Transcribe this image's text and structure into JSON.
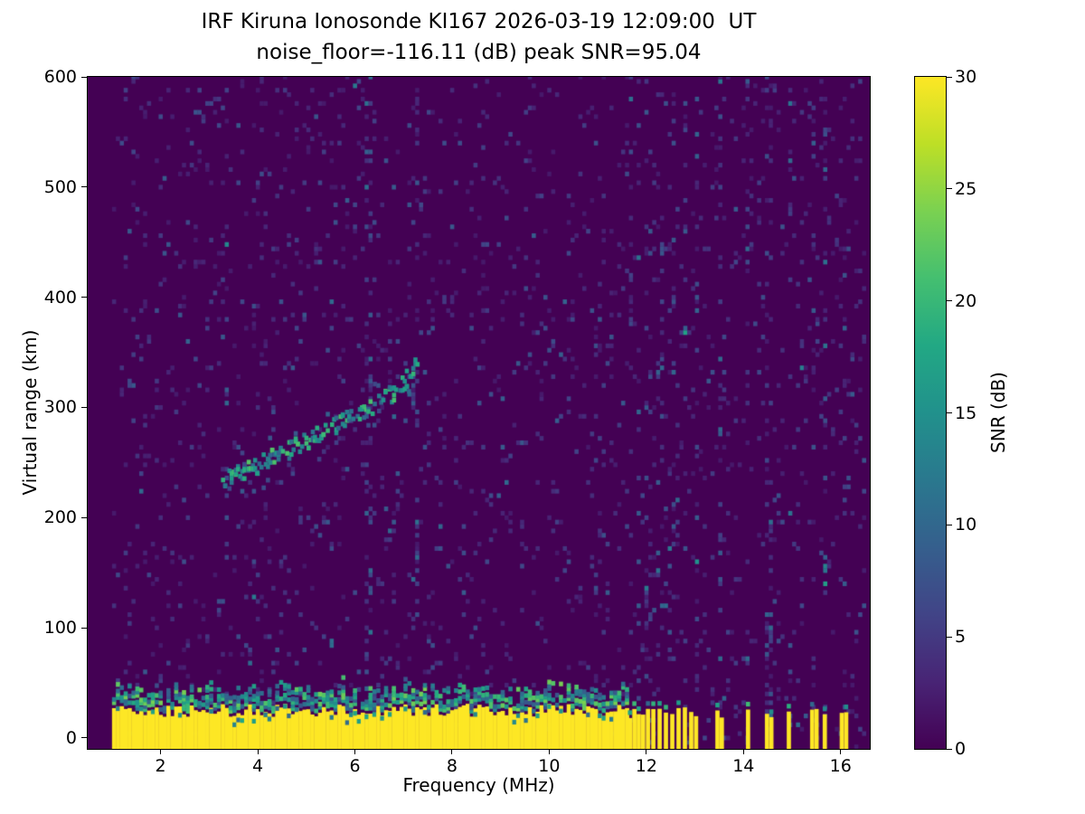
{
  "chart_data": {
    "type": "heatmap",
    "title": "IRF Kiruna Ionosonde KI167 2026-03-19 12:09:00  UT",
    "subtitle": "noise_floor=-116.11 (dB) peak SNR=95.04",
    "station_code": "KI167",
    "timestamp_ut": "2026-03-19 12:09:00",
    "noise_floor_db": -116.11,
    "peak_snr_db": 95.04,
    "xlabel": "Frequency (MHz)",
    "ylabel": "Virtual range (km)",
    "colorbar_label": "SNR (dB)",
    "xlim": [
      0.5,
      16.6
    ],
    "ylim": [
      -10,
      600
    ],
    "xticks": [
      2,
      4,
      6,
      8,
      10,
      12,
      14,
      16
    ],
    "yticks": [
      0,
      100,
      200,
      300,
      400,
      500,
      600
    ],
    "colorbar_ticks": [
      0,
      5,
      10,
      15,
      20,
      25,
      30
    ],
    "colorbar_range": [
      0,
      30
    ],
    "colormap": "viridis",
    "colormap_stops": [
      [
        0.0,
        "#440154"
      ],
      [
        0.1,
        "#482475"
      ],
      [
        0.2,
        "#414487"
      ],
      [
        0.3,
        "#355f8d"
      ],
      [
        0.4,
        "#2a788e"
      ],
      [
        0.5,
        "#21918c"
      ],
      [
        0.6,
        "#22a884"
      ],
      [
        0.7,
        "#44bf70"
      ],
      [
        0.8,
        "#7ad151"
      ],
      [
        0.9,
        "#bddf26"
      ],
      [
        1.0,
        "#fde725"
      ]
    ],
    "freq_range_mhz": [
      1.0,
      16.5
    ],
    "noise": {
      "seed": 42,
      "density": 0.055,
      "bin_mhz": 0.08,
      "bin_km": 4
    },
    "ground_pulse": {
      "top_km_base": 25,
      "top_km_jitter": 6,
      "continuous_mhz": [
        1.0,
        11.62
      ],
      "bars_mhz": [
        11.66,
        11.75,
        11.84,
        11.93,
        12.03,
        12.14,
        12.27,
        12.4,
        12.53,
        12.66,
        12.79,
        12.92,
        13.02,
        13.46,
        13.55,
        14.09,
        14.48,
        14.57,
        14.93,
        15.41,
        15.5,
        15.67,
        16.02,
        16.11
      ]
    },
    "echo_trace": {
      "points_mhz_km": [
        [
          3.2,
          231
        ],
        [
          3.6,
          239
        ],
        [
          4.0,
          247
        ],
        [
          4.5,
          257
        ],
        [
          5.0,
          268
        ],
        [
          5.5,
          280
        ],
        [
          6.0,
          293
        ],
        [
          6.4,
          302
        ],
        [
          6.8,
          313
        ],
        [
          7.0,
          322
        ],
        [
          7.15,
          333
        ],
        [
          7.25,
          344
        ]
      ]
    },
    "interference_stripes": [
      {
        "f_mhz": 3.35,
        "intensity": 0.09,
        "range_km": [
          150,
          600
        ]
      },
      {
        "f_mhz": 6.28,
        "intensity": 0.13,
        "range_km": [
          -10,
          600
        ]
      },
      {
        "f_mhz": 6.28,
        "intensity": 0.4,
        "range_km": [
          255,
          345
        ]
      },
      {
        "f_mhz": 7.28,
        "intensity": 0.15,
        "range_km": [
          60,
          600
        ]
      },
      {
        "f_mhz": 7.22,
        "intensity": 0.45,
        "range_km": [
          295,
          350
        ]
      },
      {
        "f_mhz": 11.66,
        "intensity": 0.08,
        "range_km": [
          40,
          600
        ]
      },
      {
        "f_mhz": 11.84,
        "intensity": 0.07,
        "range_km": [
          40,
          600
        ]
      },
      {
        "f_mhz": 12.03,
        "intensity": 0.08,
        "range_km": [
          40,
          600
        ]
      },
      {
        "f_mhz": 12.27,
        "intensity": 0.07,
        "range_km": [
          40,
          600
        ]
      },
      {
        "f_mhz": 12.53,
        "intensity": 0.08,
        "range_km": [
          40,
          600
        ]
      },
      {
        "f_mhz": 12.79,
        "intensity": 0.07,
        "range_km": [
          40,
          600
        ]
      },
      {
        "f_mhz": 13.02,
        "intensity": 0.08,
        "range_km": [
          40,
          600
        ]
      },
      {
        "f_mhz": 13.5,
        "intensity": 0.11,
        "range_km": [
          -10,
          600
        ]
      },
      {
        "f_mhz": 14.09,
        "intensity": 0.07,
        "range_km": [
          -10,
          600
        ]
      },
      {
        "f_mhz": 14.52,
        "intensity": 0.11,
        "range_km": [
          -10,
          600
        ]
      },
      {
        "f_mhz": 14.95,
        "intensity": 0.07,
        "range_km": [
          -10,
          600
        ]
      },
      {
        "f_mhz": 15.44,
        "intensity": 0.1,
        "range_km": [
          -10,
          600
        ]
      },
      {
        "f_mhz": 15.67,
        "intensity": 0.07,
        "range_km": [
          -10,
          600
        ]
      },
      {
        "f_mhz": 16.07,
        "intensity": 0.1,
        "range_km": [
          -10,
          600
        ]
      }
    ]
  }
}
